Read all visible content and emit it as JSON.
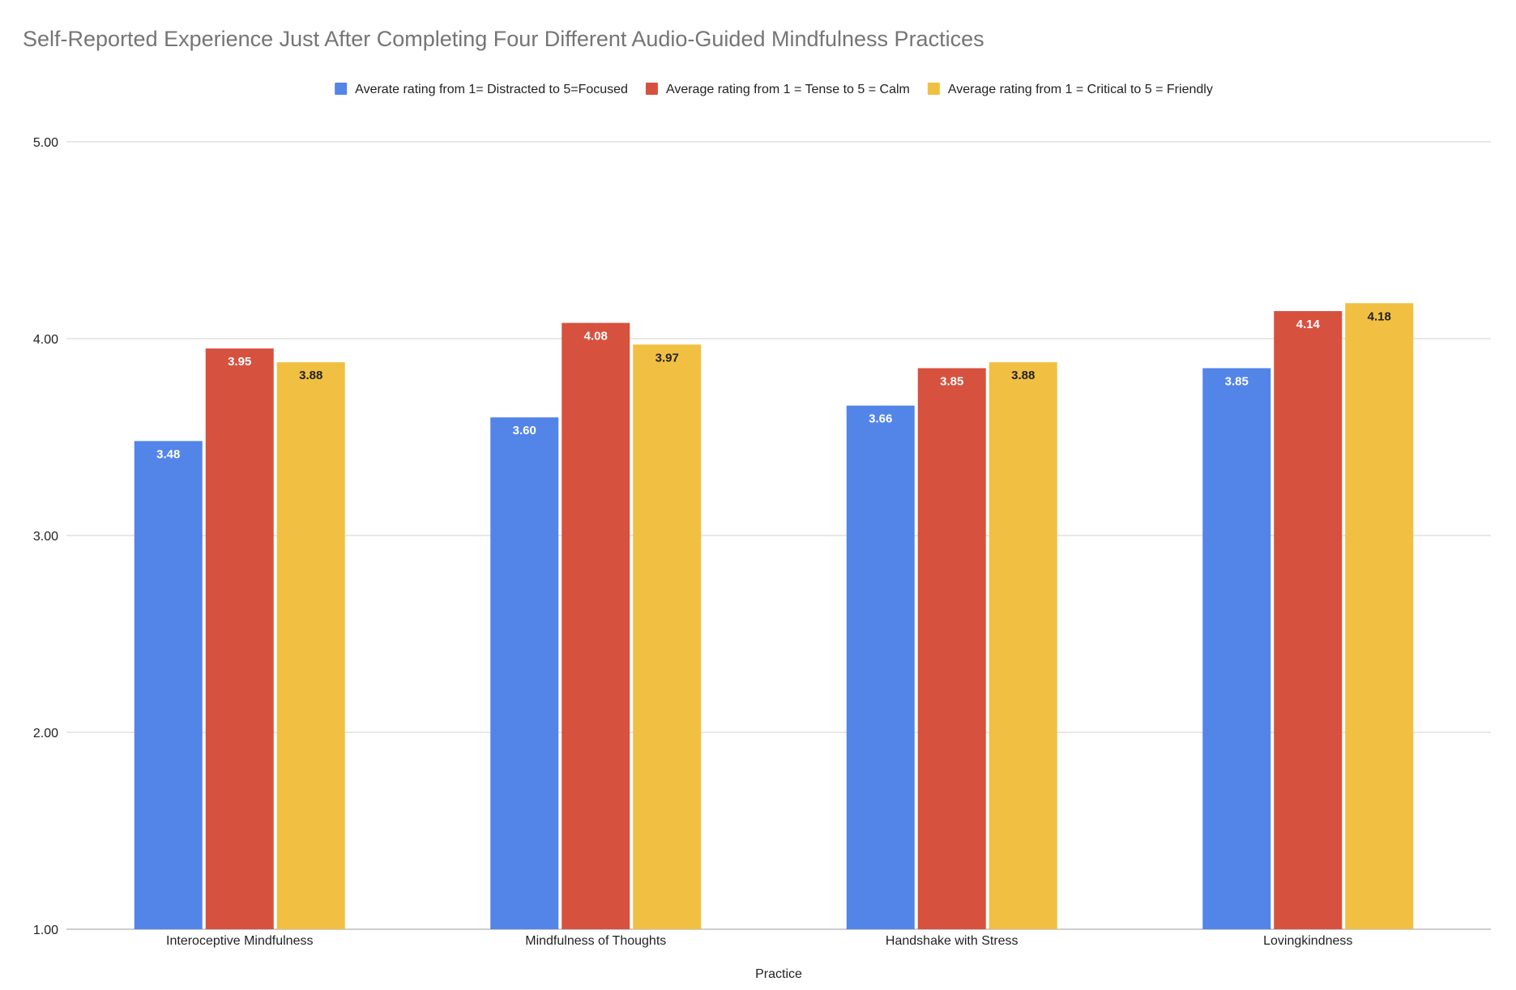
{
  "chart_data": {
    "type": "bar",
    "title": "Self-Reported Experience Just After Completing Four Different Audio-Guided Mindfulness Practices",
    "xlabel": "Practice",
    "ylabel": "",
    "categories": [
      "Interoceptive Mindfulness",
      "Mindfulness of Thoughts",
      "Handshake with Stress",
      "Lovingkindness"
    ],
    "series": [
      {
        "name": "Averate rating from 1= Distracted to 5=Focused",
        "color": "#5384e8",
        "label_color": "#ffffff",
        "values": [
          3.48,
          3.6,
          3.66,
          3.85
        ]
      },
      {
        "name": "Average rating from 1 = Tense to 5 = Calm",
        "color": "#d7513f",
        "label_color": "#ffffff",
        "values": [
          3.95,
          4.08,
          3.85,
          4.14
        ]
      },
      {
        "name": "Average rating from 1 = Critical to 5 = Friendly",
        "color": "#f1c042",
        "label_color": "#222222",
        "values": [
          3.88,
          3.97,
          3.88,
          4.18
        ]
      }
    ],
    "ylim": [
      1,
      5
    ],
    "yticks": [
      "1.00",
      "2.00",
      "3.00",
      "4.00",
      "5.00"
    ],
    "value_format": "2 decimals",
    "grid": true,
    "legend_position": "top-center"
  }
}
